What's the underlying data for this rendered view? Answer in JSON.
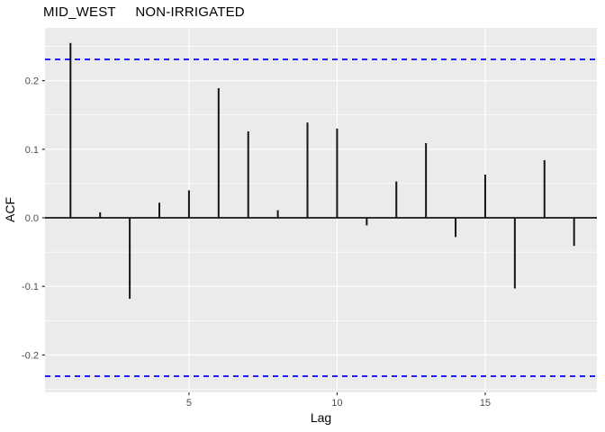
{
  "chart_data": {
    "type": "bar",
    "subtype": "acf-stem-plot",
    "title": "MID_WEST     NON-IRRIGATED",
    "xlabel": "Lag",
    "ylabel": "ACF",
    "x": [
      1,
      2,
      3,
      4,
      5,
      6,
      7,
      8,
      9,
      10,
      11,
      12,
      13,
      14,
      15,
      16,
      17,
      18
    ],
    "values": [
      0.255,
      0.008,
      -0.118,
      0.022,
      0.04,
      0.189,
      0.126,
      0.011,
      0.139,
      0.13,
      -0.011,
      0.053,
      0.109,
      -0.028,
      0.063,
      -0.103,
      0.084,
      -0.041
    ],
    "confidence_upper": 0.231,
    "confidence_lower": -0.231,
    "xlim": [
      0.14,
      18.77
    ],
    "ylim": [
      -0.2546,
      0.2769
    ],
    "xticks": {
      "values": [
        5,
        10,
        15
      ],
      "labels": [
        "5",
        "10",
        "15"
      ]
    },
    "yticks": {
      "values": [
        -0.2,
        -0.1,
        0.0,
        0.1,
        0.2
      ],
      "labels": [
        "-0.2",
        "-0.1",
        "0.0",
        "0.1",
        "0.2"
      ]
    },
    "yminor": [
      -0.25,
      -0.15,
      -0.05,
      0.05,
      0.15,
      0.25
    ],
    "grid": true,
    "legend": "none",
    "colors": {
      "panel_background": "#EBEBEB",
      "gridline": "#FFFFFF",
      "bar": "#151515",
      "zero_line": "#151515",
      "confidence_line": "#0000FF",
      "tick_mark": "#333333",
      "tick_label": "#4D4D4D",
      "text": "#000000",
      "figure_background": "#FFFFFF"
    }
  }
}
